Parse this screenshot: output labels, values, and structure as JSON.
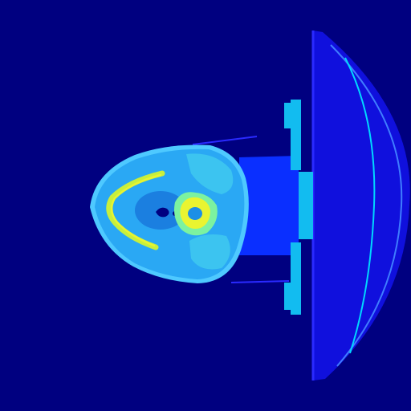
{
  "image": {
    "kind": "axial-ct-slice-pseudocolor",
    "colormap": "jet",
    "subject": "head-neck-axial"
  },
  "colors": {
    "background": "#000080",
    "couch_dark": "#1010dd",
    "couch_edge": "#2a2aff",
    "couch_rim": "#3f7dff",
    "couch_highlight": "#00d8ff",
    "board_plate": "#0a2fff",
    "board_bar": "#12bcf0",
    "soft_tissue": "#2aa8f4",
    "soft_tissue_dark": "#1d8fe6",
    "skin_edge": "#4ec9ff",
    "muscle": "#3cc4f0",
    "fat": "#1b7fe0",
    "airway": "#000080",
    "bone_outer": "#7cf2a0",
    "bone_inner": "#e9f430",
    "mandible": "#c8ef3c"
  }
}
